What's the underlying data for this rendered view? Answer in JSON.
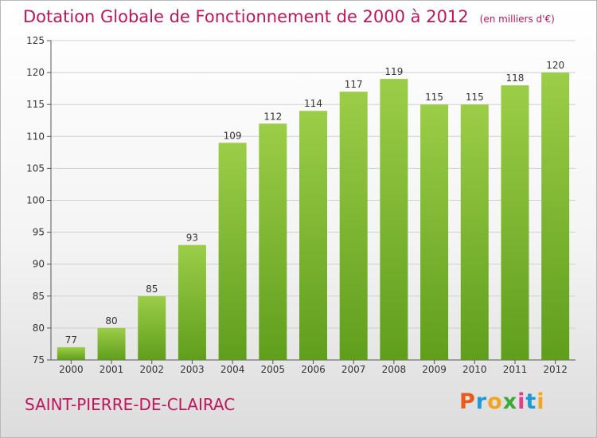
{
  "header": {
    "title": "Dotation Globale de Fonctionnement de 2000 à 2012",
    "subtitle": "(en milliers d'€)"
  },
  "footer": {
    "commune": "SAINT-PIERRE-DE-CLAIRAC",
    "logo_text": "Proxiti",
    "logo_colors": [
      "#e85a1a",
      "#1d9ad6",
      "#f2a51e",
      "#3aa935",
      "#e23c8f",
      "#1d9ad6",
      "#f2a51e"
    ]
  },
  "chart_data": {
    "type": "bar",
    "categories": [
      "2000",
      "2001",
      "2002",
      "2003",
      "2004",
      "2005",
      "2006",
      "2007",
      "2008",
      "2009",
      "2010",
      "2011",
      "2012"
    ],
    "values": [
      77,
      80,
      85,
      93,
      109,
      112,
      114,
      117,
      119,
      115,
      115,
      118,
      120
    ],
    "title": "Dotation Globale de Fonctionnement de 2000 à 2012",
    "subtitle": "(en milliers d'€)",
    "ylim": [
      75,
      125
    ],
    "yticks": [
      75,
      80,
      85,
      90,
      95,
      100,
      105,
      110,
      115,
      120,
      125
    ],
    "grid": true,
    "bar_color_top": "#9ccd48",
    "bar_color_bottom": "#5f9e1c",
    "grid_color": "#d0d0d0"
  }
}
